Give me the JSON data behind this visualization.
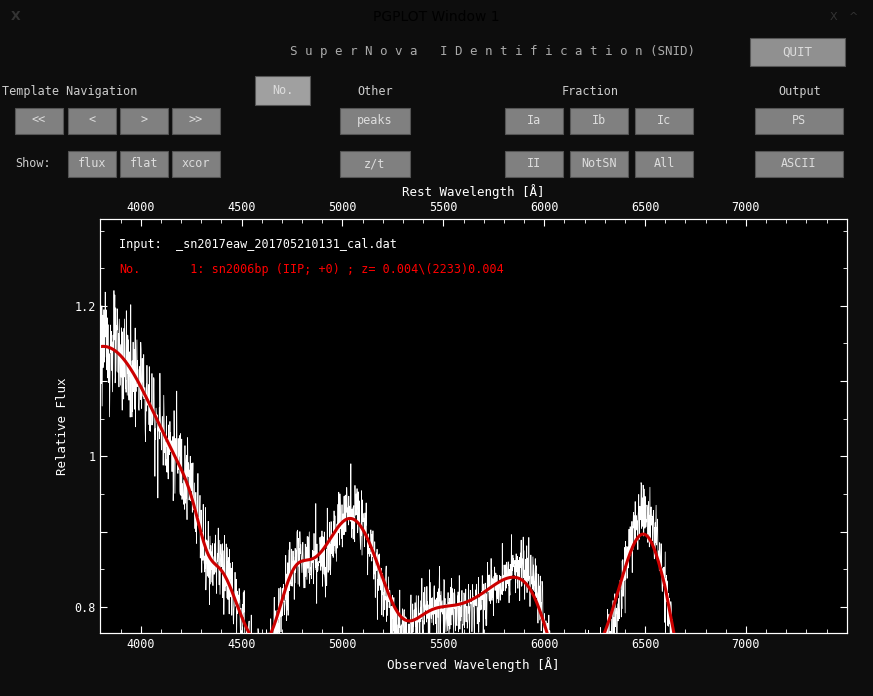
{
  "title": "PGPLOT Window 1",
  "bg_color": "#000000",
  "ui_bg": "#0d0d0d",
  "window_title_bg": "#c0c0c0",
  "button_face": "#909090",
  "button_dark": "#666666",
  "text_color": "#cccccc",
  "snid_title": "S u p e r N o v a   I D e n t i f i c a t i o n (SNID)",
  "input_label": "Input:  _sn2017eaw_201705210131_cal.dat",
  "match_label_1": "No.",
  "match_label_2": "          1: sn2006bp (IIP; +0) ; z= 0.004\\(2233)0.004",
  "xlabel": "Observed Wavelength [Å]",
  "xlabel_top": "Rest Wavelength [Å]",
  "ylabel": "Relative Flux",
  "xmin": 3800,
  "xmax": 7500,
  "ymin": 0.765,
  "ymax": 1.315,
  "ytick_vals": [
    0.8,
    0.9,
    1.0,
    1.1,
    1.2
  ],
  "ytick_labels": [
    "0.8",
    "",
    "1",
    "",
    "1.2"
  ],
  "xtick_vals": [
    4000,
    4500,
    5000,
    5500,
    6000,
    6500,
    7000
  ],
  "white_line_color": "#ffffff",
  "red_line_color": "#cc0000",
  "nav_buttons": [
    "<<",
    "<",
    ">",
    ">>"
  ],
  "show_buttons": [
    "flux",
    "flat",
    "xcor"
  ],
  "other_buttons": [
    "peaks",
    "z/t"
  ],
  "fraction_row1": [
    "Ia",
    "Ib",
    "Ic"
  ],
  "fraction_row2": [
    "II",
    "NotSN",
    "All"
  ],
  "output_buttons": [
    "PS",
    "ASCII"
  ],
  "quit_button": "QUIT",
  "no_button": "No.",
  "template_nav_label": "Template Navigation",
  "other_label": "Other",
  "fraction_label": "Fraction",
  "output_label": "Output",
  "show_label": "Show:"
}
